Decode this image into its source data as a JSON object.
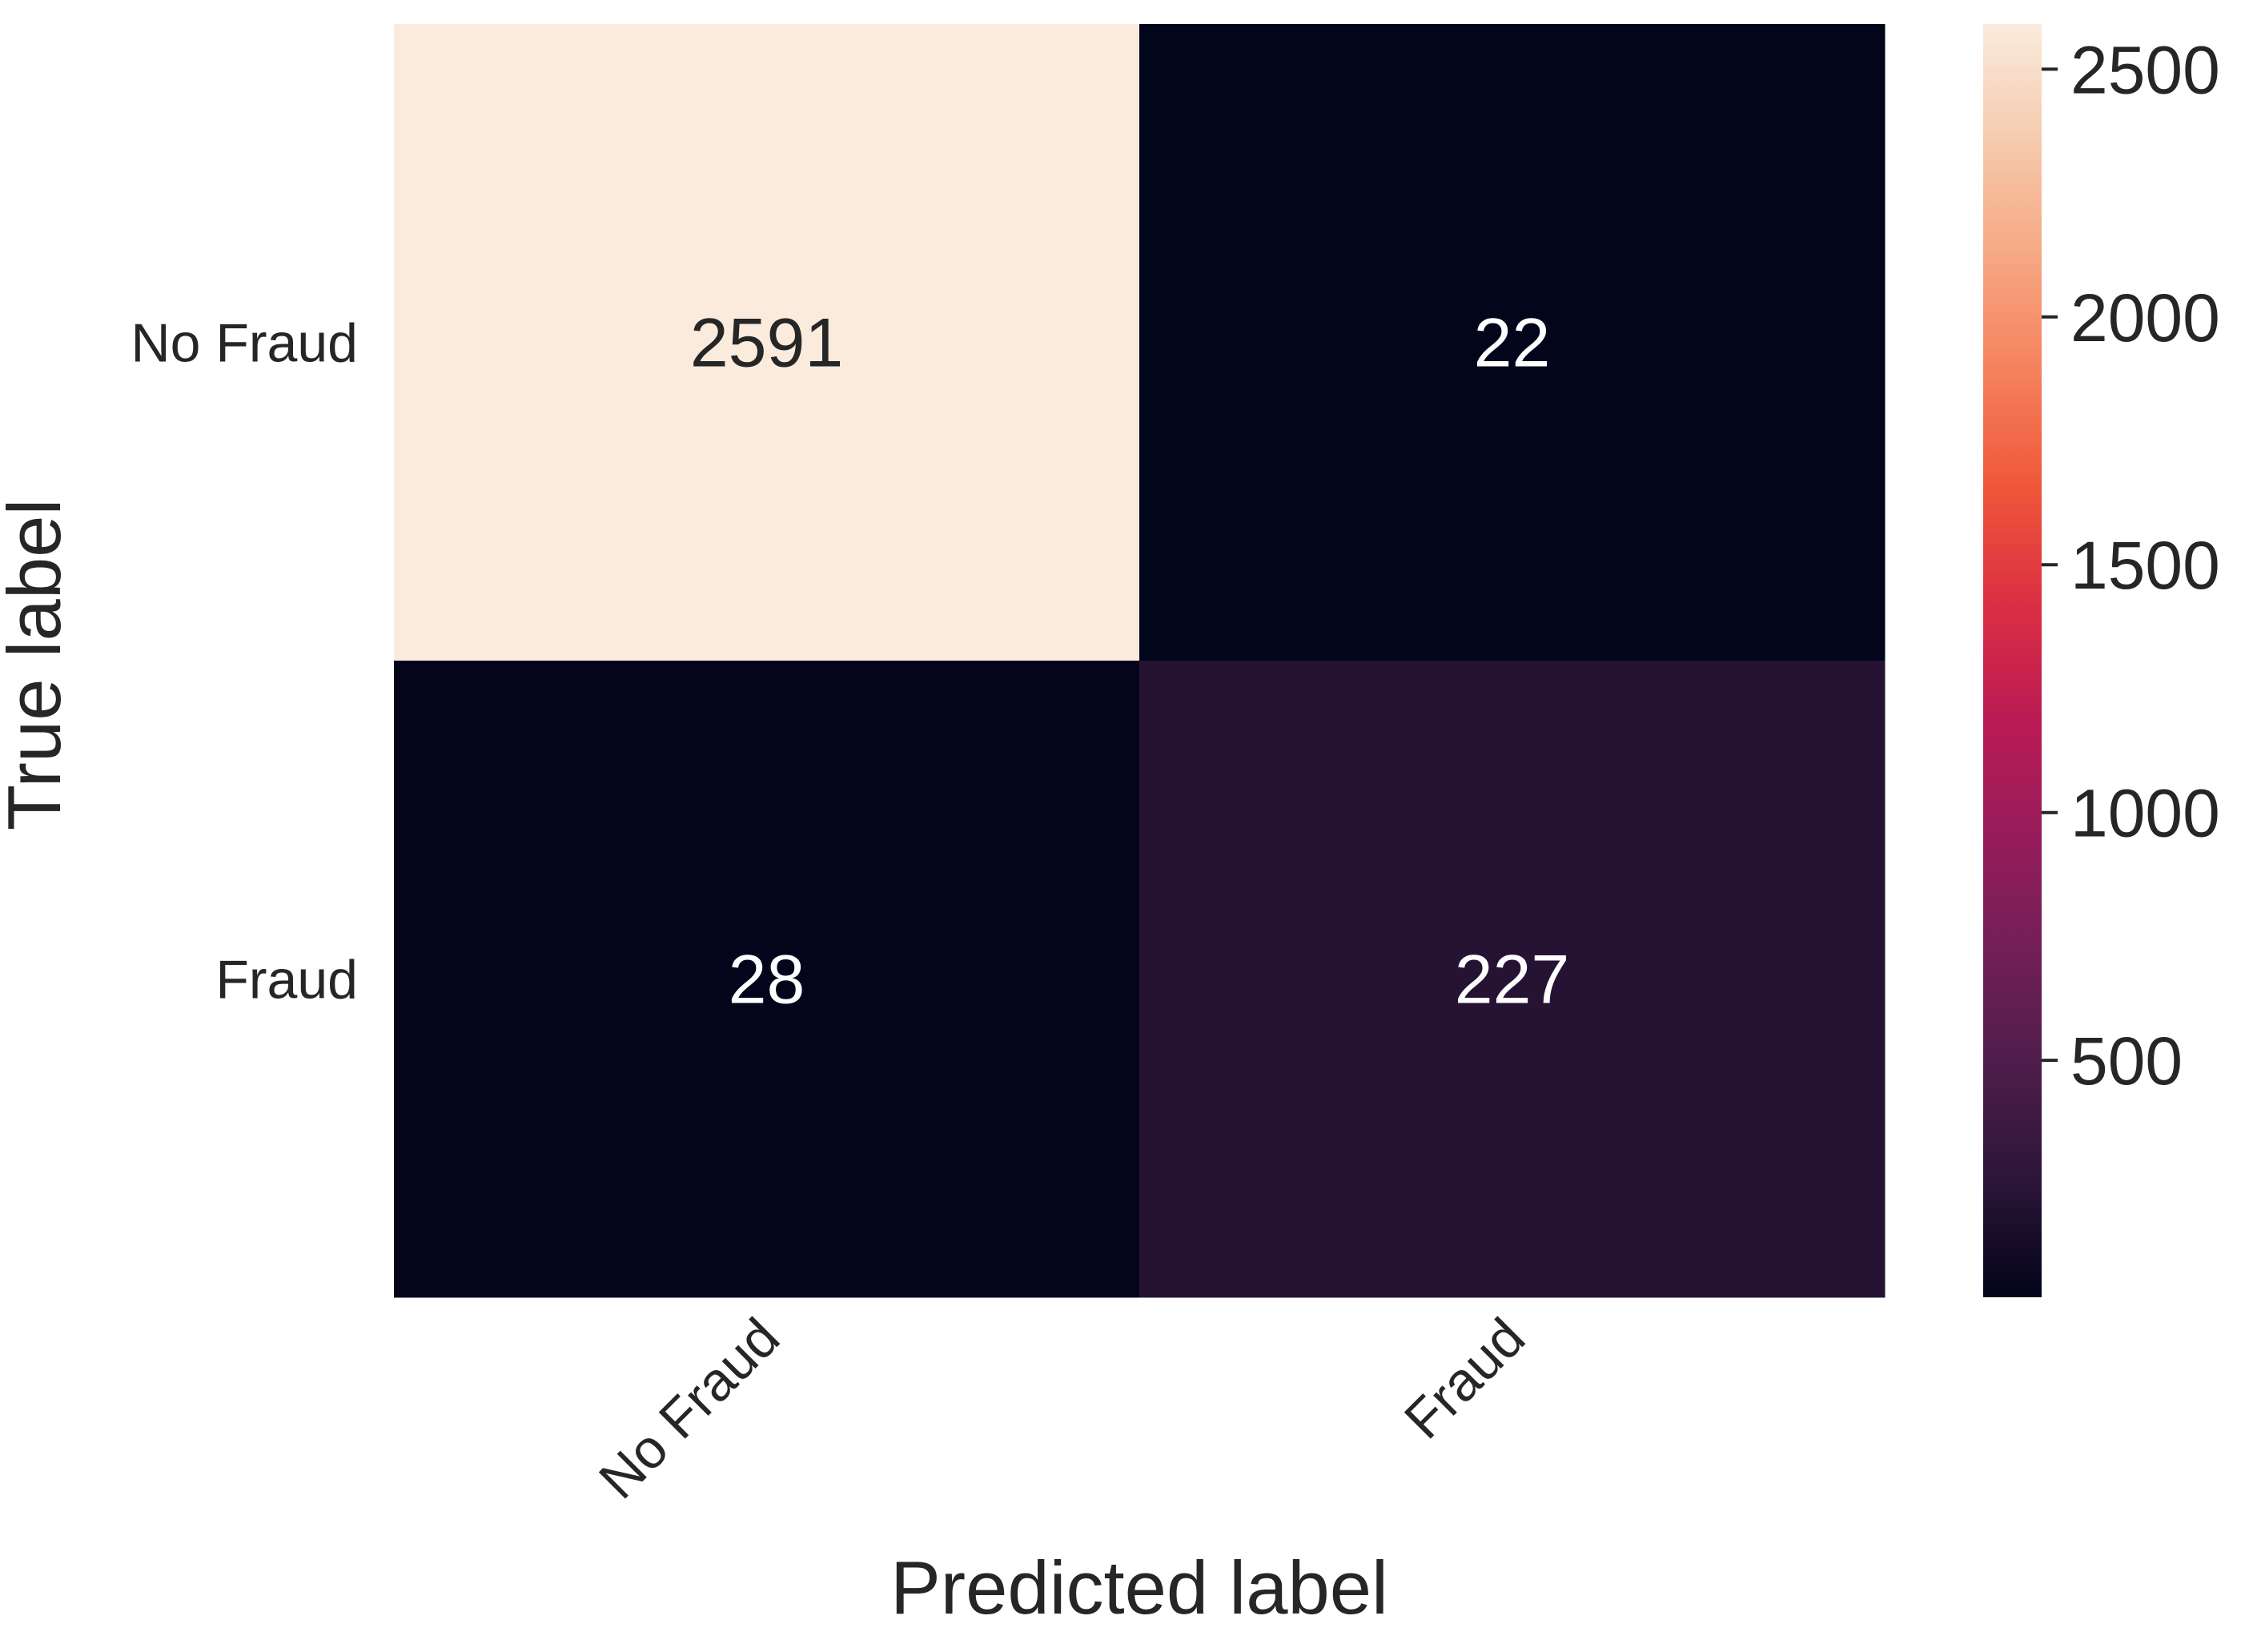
{
  "chart_data": {
    "type": "heatmap",
    "title": "",
    "xlabel": "Predicted label",
    "ylabel": "True label",
    "x_categories": [
      "No Fraud",
      "Fraud"
    ],
    "y_categories": [
      "No Fraud",
      "Fraud"
    ],
    "values": [
      [
        2591,
        22
      ],
      [
        28,
        227
      ]
    ],
    "cell_labels": [
      [
        "2591",
        "22"
      ],
      [
        "28",
        "227"
      ]
    ],
    "colormap": "rocket",
    "colorbar": {
      "range": [
        22,
        2591
      ],
      "ticks": [
        500,
        1000,
        1500,
        2000,
        2500
      ],
      "tick_labels": [
        "500",
        "1000",
        "1500",
        "2000",
        "2500"
      ]
    },
    "colors": {
      "stops": [
        "#03051a",
        "#2b1538",
        "#4e1d4b",
        "#721f57",
        "#971c5b",
        "#bb1b54",
        "#dc2f43",
        "#ef573a",
        "#f5815c",
        "#f6a883",
        "#f5cbad",
        "#faebdd"
      ],
      "text_dark": "#262626",
      "text_light": "#ffffff"
    }
  }
}
